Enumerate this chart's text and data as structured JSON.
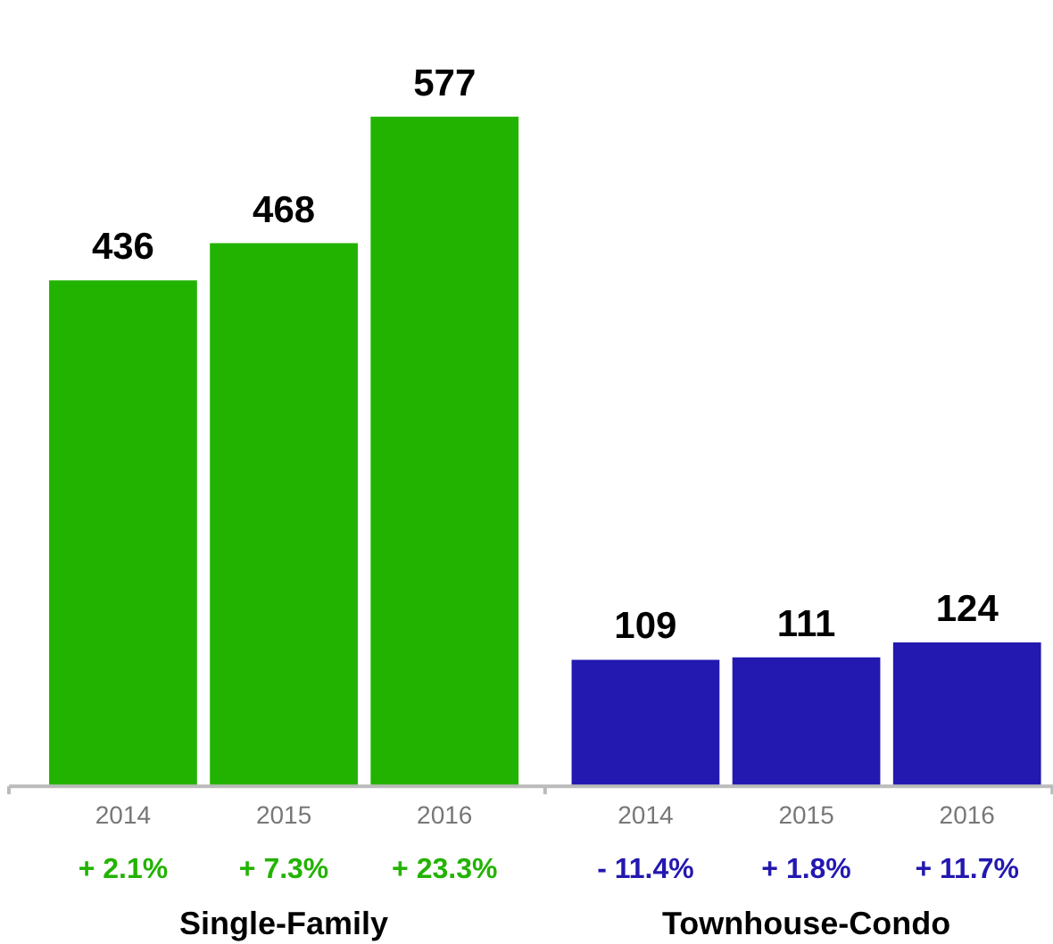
{
  "chart_data": {
    "type": "bar",
    "categories": [
      "2014",
      "2015",
      "2016",
      "2014",
      "2015",
      "2016"
    ],
    "series": [
      {
        "color": "#22b300",
        "values": [
          436,
          468,
          577,
          null,
          null,
          null
        ]
      },
      {
        "color": "#2318b0",
        "values": [
          null,
          null,
          null,
          109,
          111,
          124
        ]
      }
    ],
    "data_labels": true,
    "annotations": [
      "+ 2.1%",
      "+ 7.3%",
      "+ 23.3%",
      "- 11.4%",
      "+ 1.8%",
      "+ 11.7%",
      "Single-Family",
      "Townhouse-Condo"
    ]
  }
}
